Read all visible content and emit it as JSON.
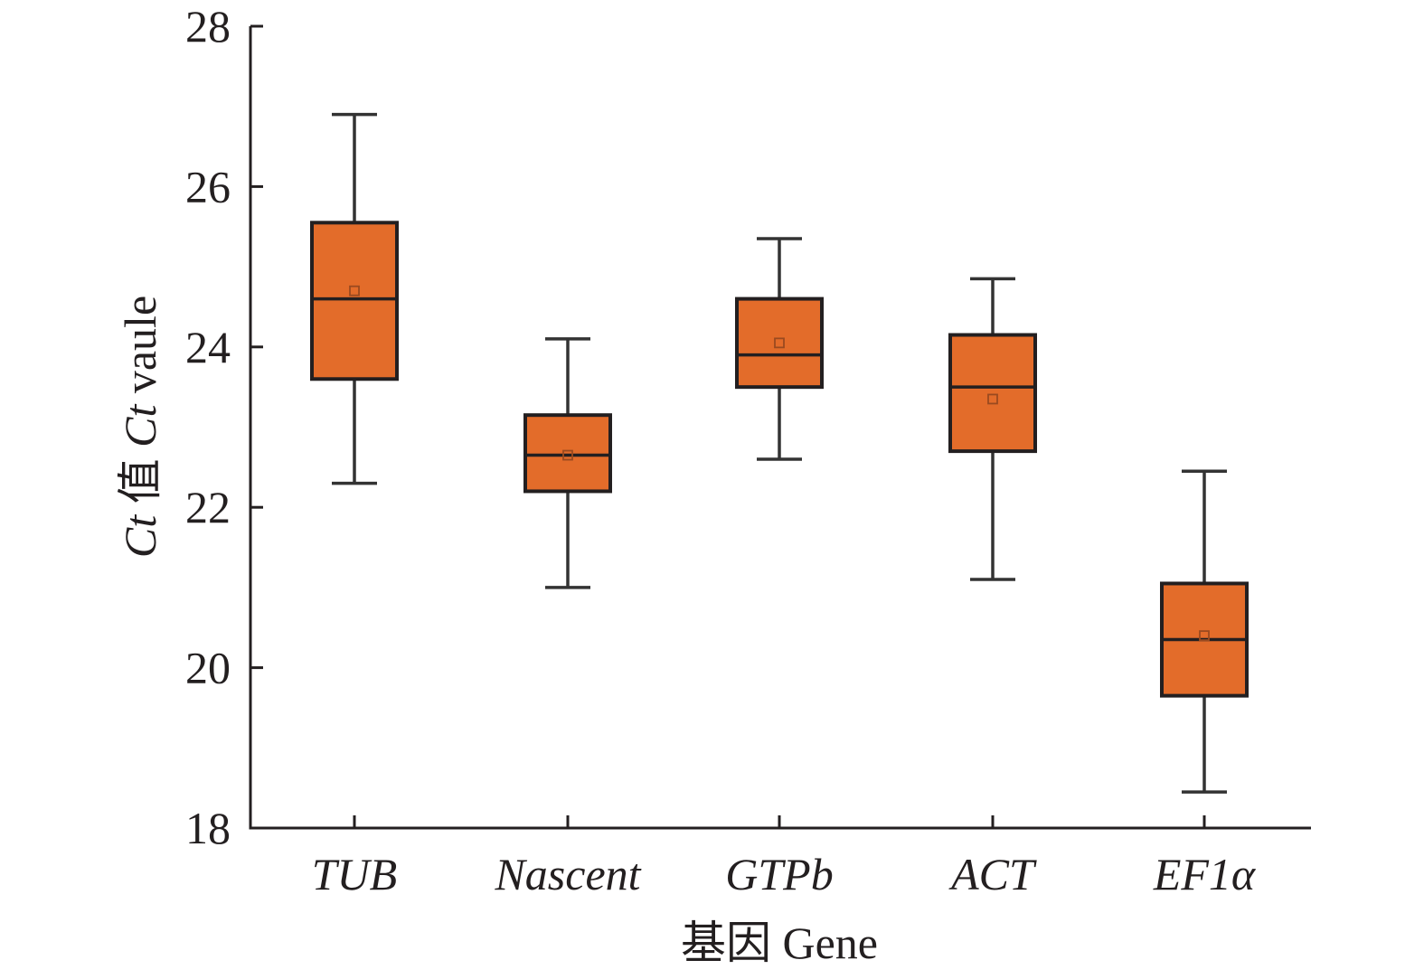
{
  "chart_data": {
    "type": "box",
    "title": "",
    "xlabel": {
      "cn": "基因",
      "en": "Gene"
    },
    "ylabel": {
      "ct1": "Ct",
      "cn": "值",
      "ct2": "Ct",
      "en": "vaule"
    },
    "ylim": [
      18,
      28
    ],
    "yticks": [
      "18",
      "20",
      "22",
      "24",
      "26",
      "28"
    ],
    "categories": [
      "TUB",
      "Nascent",
      "GTPb",
      "ACT",
      "EF1α"
    ],
    "series": [
      {
        "name": "TUB",
        "min": 22.3,
        "q1": 23.6,
        "median": 24.6,
        "mean": 24.7,
        "q3": 25.55,
        "max": 26.9
      },
      {
        "name": "Nascent",
        "min": 21.0,
        "q1": 22.2,
        "median": 22.65,
        "mean": 22.65,
        "q3": 23.15,
        "max": 24.1
      },
      {
        "name": "GTPb",
        "min": 22.6,
        "q1": 23.5,
        "median": 23.9,
        "mean": 24.05,
        "q3": 24.6,
        "max": 25.35
      },
      {
        "name": "ACT",
        "min": 21.1,
        "q1": 22.7,
        "median": 23.5,
        "mean": 23.35,
        "q3": 24.15,
        "max": 24.85
      },
      {
        "name": "EF1α",
        "min": 18.45,
        "q1": 19.65,
        "median": 20.35,
        "mean": 20.4,
        "q3": 21.05,
        "max": 22.45
      }
    ],
    "grid": false,
    "legend": "none",
    "colors": {
      "box_fill": "#E36C2A",
      "box_stroke": "#231f20",
      "axis": "#231f20",
      "mean_marker": "#9a4a20"
    }
  }
}
